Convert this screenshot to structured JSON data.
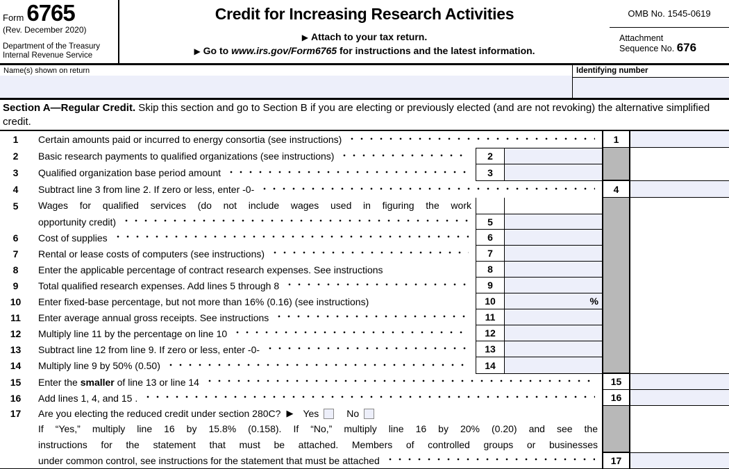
{
  "glyphs": {
    "pointer": "▶"
  },
  "colors": {
    "input_fill": "#edeffa",
    "shaded_cell": "#b8b8b8",
    "line": "#000000"
  },
  "header": {
    "form_label": "Form",
    "form_number": "6765",
    "revision": "(Rev. December 2020)",
    "agency_line1": "Department of the Treasury",
    "agency_line2": "Internal Revenue Service",
    "title": "Credit for Increasing Research Activities",
    "attach_note": "Attach to your tax return.",
    "goto_pre": "Go to ",
    "goto_url": "www.irs.gov/Form6765",
    "goto_post": " for instructions and the latest information.",
    "omb": "OMB No. 1545-0619",
    "attachment_line1": "Attachment",
    "attachment_line2": "Sequence No.",
    "attachment_number": "676"
  },
  "name_row": {
    "name_label": "Name(s) shown on return",
    "name_value": "",
    "id_label": "Identifying number",
    "id_value": ""
  },
  "section_a": {
    "heading_bold": "Section A—Regular Credit.",
    "heading_rest": " Skip this section and go to Section B if you are electing or previously elected (and are not revoking) the alternative simplified credit."
  },
  "rows": {
    "r1": {
      "num": "1",
      "text": "Certain amounts paid or incurred to energy consortia (see instructions)",
      "value": ""
    },
    "r2": {
      "num": "2",
      "text": "Basic research payments to qualified organizations (see instructions)",
      "value": ""
    },
    "r3": {
      "num": "3",
      "text": "Qualified organization base period amount",
      "value": ""
    },
    "r4": {
      "num": "4",
      "text": "Subtract line 3 from line 2. If zero or less, enter -0-",
      "value": ""
    },
    "r5": {
      "num": "5",
      "text_line1": "Wages for qualified services (do not include wages used in figuring the work",
      "text_line2": "opportunity credit)",
      "value": ""
    },
    "r6": {
      "num": "6",
      "text": "Cost of supplies",
      "value": ""
    },
    "r7": {
      "num": "7",
      "text": "Rental or lease costs of computers (see instructions)",
      "value": ""
    },
    "r8": {
      "num": "8",
      "text": "Enter the applicable percentage of contract research expenses. See instructions",
      "value": ""
    },
    "r9": {
      "num": "9",
      "text": "Total qualified research expenses. Add lines 5 through 8",
      "value": ""
    },
    "r10": {
      "num": "10",
      "text": "Enter fixed-base percentage, but not more than 16% (0.16) (see instructions)",
      "value": "",
      "unit": "%"
    },
    "r11": {
      "num": "11",
      "text": "Enter average annual gross receipts. See instructions",
      "value": ""
    },
    "r12": {
      "num": "12",
      "text": "Multiply line 11 by the percentage on line 10",
      "value": ""
    },
    "r13": {
      "num": "13",
      "text": "Subtract line 12 from line 9. If zero or less, enter -0-",
      "value": ""
    },
    "r14": {
      "num": "14",
      "text": "Multiply line 9 by 50% (0.50)",
      "value": ""
    },
    "r15": {
      "num": "15",
      "pre": "Enter the ",
      "bold": "smaller",
      "post": " of line 13 or line 14",
      "value": ""
    },
    "r16": {
      "num": "16",
      "text": "Add lines 1, 4, and 15 .",
      "value": ""
    },
    "r17": {
      "num": "17",
      "question": "Are you electing the reduced credit under section 280C?",
      "yes_label": "Yes",
      "no_label": "No",
      "yes_checked": false,
      "no_checked": false,
      "p1": "If “Yes,” multiply line 16 by 15.8% (0.158). If “No,” multiply line 16 by 20% (0.20) and see the",
      "p2": "instructions for the statement that must be attached. Members of controlled groups or businesses",
      "p3": "under common control, see instructions for the statement that must be attached",
      "value": ""
    }
  }
}
